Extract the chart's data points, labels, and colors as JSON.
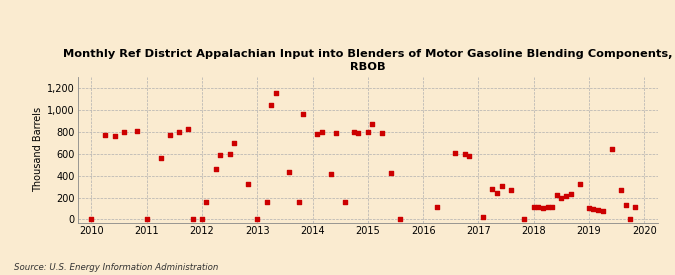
{
  "title": "Monthly Ref District Appalachian Input into Blenders of Motor Gasoline Blending Components,\nRBOB",
  "ylabel": "Thousand Barrels",
  "source": "Source: U.S. Energy Information Administration",
  "background_color": "#faebd0",
  "marker_color": "#cc0000",
  "xlim": [
    2009.75,
    2020.25
  ],
  "ylim": [
    -30,
    1300
  ],
  "yticks": [
    0,
    200,
    400,
    600,
    800,
    1000,
    1200
  ],
  "ytick_labels": [
    "0",
    "200",
    "400",
    "600",
    "800",
    "1,000",
    "1,200"
  ],
  "xticks": [
    2010,
    2011,
    2012,
    2013,
    2014,
    2015,
    2016,
    2017,
    2018,
    2019,
    2020
  ],
  "data_x": [
    2010.0,
    2010.25,
    2010.42,
    2010.58,
    2010.83,
    2011.0,
    2011.25,
    2011.42,
    2011.58,
    2011.75,
    2011.83,
    2012.0,
    2012.08,
    2012.25,
    2012.33,
    2012.5,
    2012.58,
    2012.83,
    2013.0,
    2013.17,
    2013.25,
    2013.33,
    2013.58,
    2013.75,
    2013.83,
    2014.08,
    2014.17,
    2014.33,
    2014.42,
    2014.58,
    2014.75,
    2014.83,
    2015.0,
    2015.08,
    2015.25,
    2015.42,
    2015.58,
    2016.25,
    2016.58,
    2016.75,
    2016.83,
    2017.08,
    2017.25,
    2017.33,
    2017.42,
    2017.58,
    2017.83,
    2018.0,
    2018.08,
    2018.17,
    2018.25,
    2018.33,
    2018.42,
    2018.5,
    2018.58,
    2018.67,
    2018.83,
    2019.0,
    2019.08,
    2019.17,
    2019.25,
    2019.42,
    2019.58,
    2019.67,
    2019.75,
    2019.83
  ],
  "data_y": [
    0,
    775,
    760,
    800,
    810,
    0,
    565,
    775,
    795,
    830,
    0,
    0,
    155,
    460,
    590,
    600,
    700,
    325,
    0,
    160,
    1040,
    1150,
    430,
    155,
    965,
    780,
    800,
    415,
    790,
    160,
    800,
    790,
    795,
    870,
    790,
    425,
    0,
    110,
    610,
    600,
    580,
    25,
    280,
    240,
    305,
    270,
    0,
    110,
    110,
    105,
    110,
    115,
    220,
    195,
    210,
    230,
    325,
    105,
    100,
    90,
    80,
    640,
    270,
    130,
    0,
    110
  ]
}
